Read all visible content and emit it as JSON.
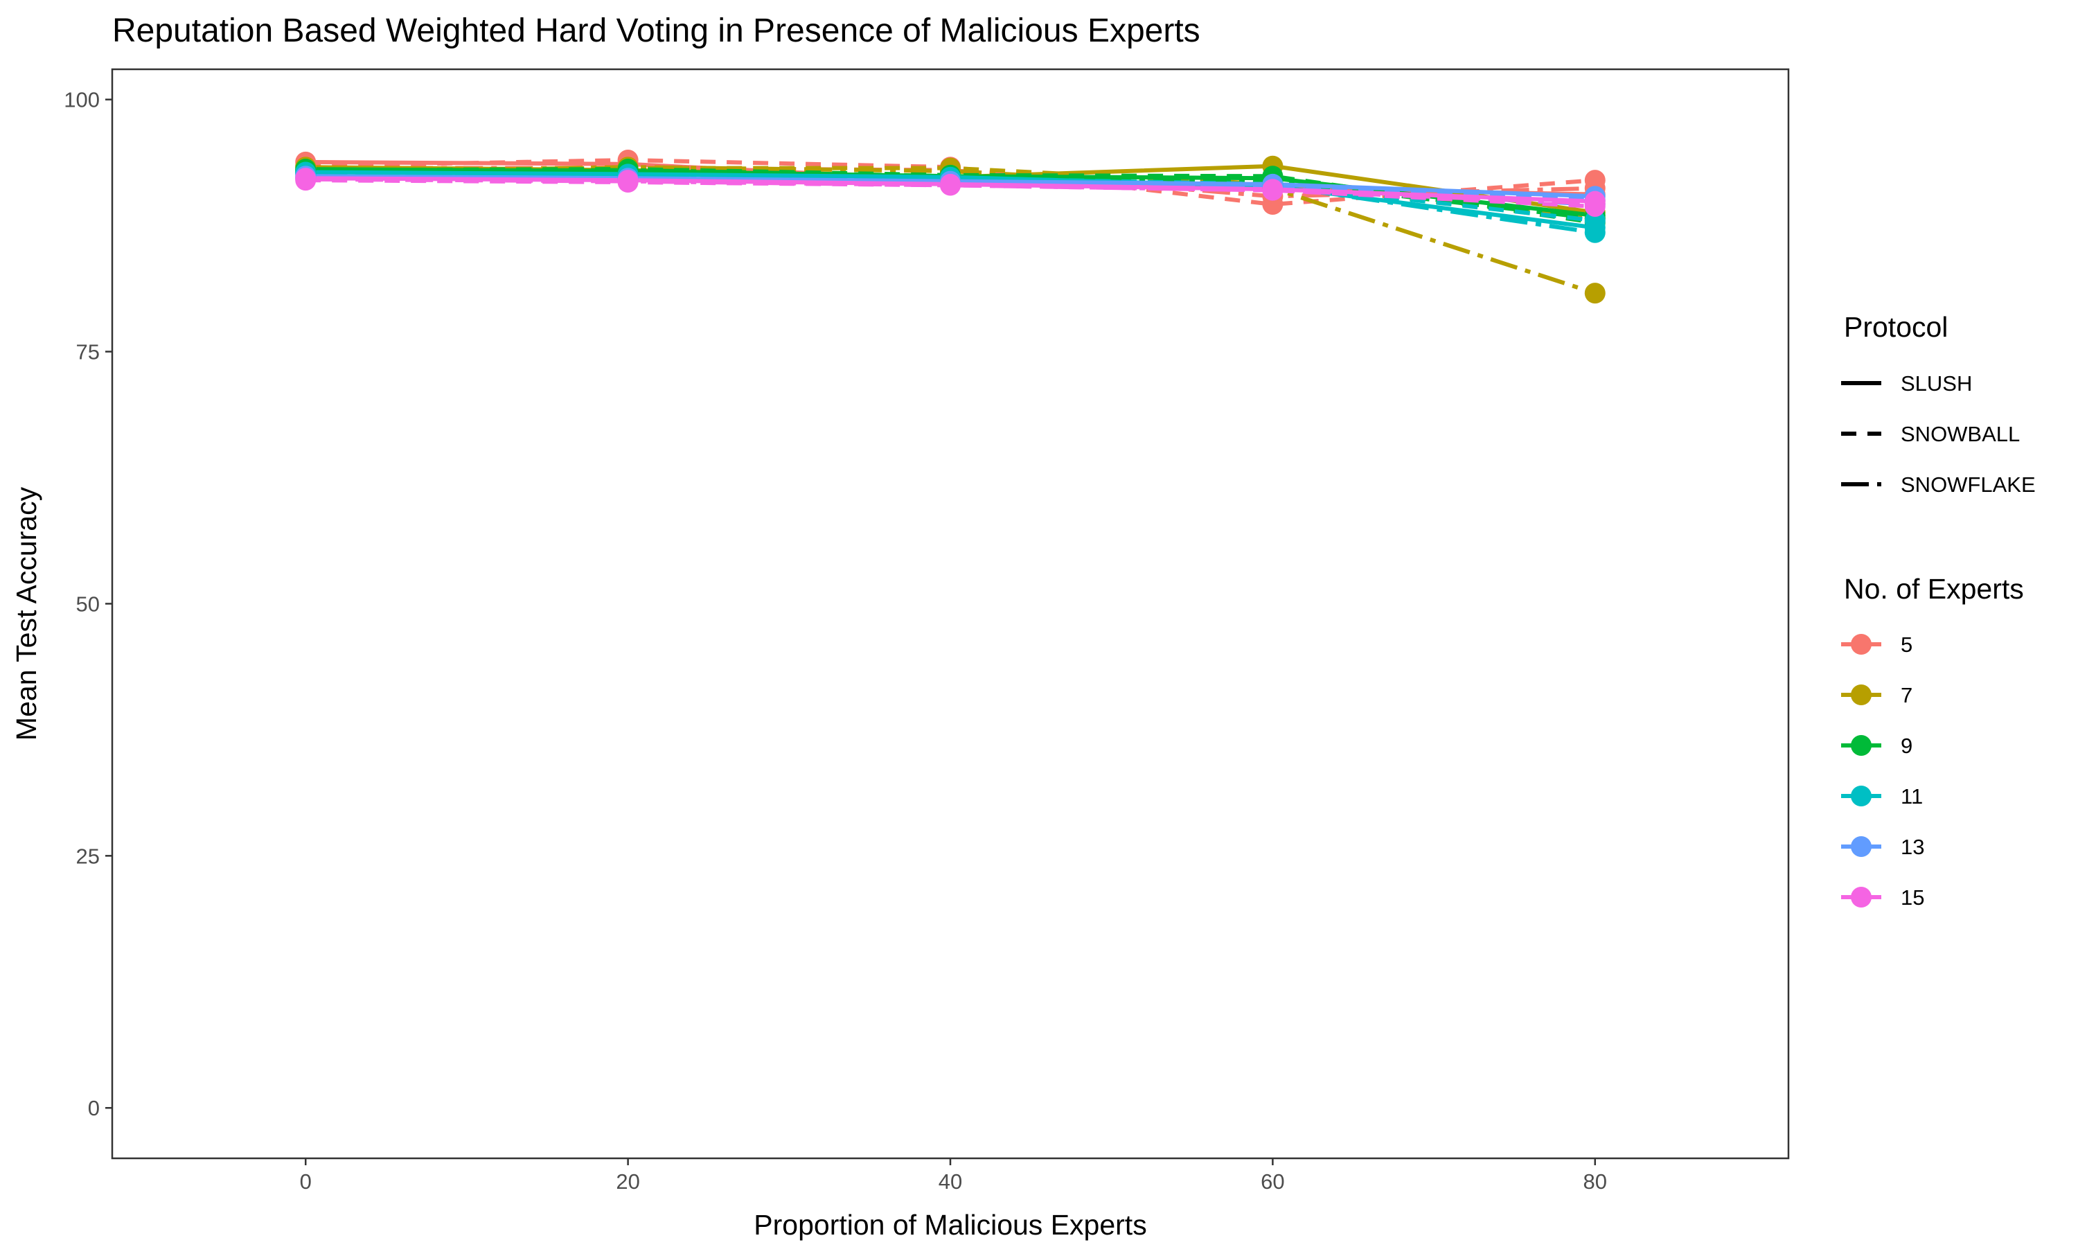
{
  "chart_data": {
    "type": "line",
    "title": "Reputation Based Weighted Hard Voting in Presence of Malicious Experts",
    "xlabel": "Proportion of Malicious Experts",
    "ylabel": "Mean Test Accuracy",
    "xlim": [
      -12,
      92
    ],
    "ylim": [
      -5,
      103
    ],
    "x_ticks": [
      "0",
      "20",
      "40",
      "60",
      "80"
    ],
    "y_ticks": [
      "0",
      "25",
      "50",
      "75",
      "100"
    ],
    "grid": false,
    "legend_placement": "right",
    "x": [
      0,
      20,
      40,
      60,
      80
    ],
    "protocol_legend": {
      "title": "Protocol",
      "entries": [
        {
          "label": "SLUSH",
          "dash": "solid"
        },
        {
          "label": "SNOWBALL",
          "dash": "dashed"
        },
        {
          "label": "SNOWFLAKE",
          "dash": "longdash"
        }
      ]
    },
    "experts_legend": {
      "title": "No. of Experts",
      "entries": [
        {
          "label": "5",
          "color": "#F8766D"
        },
        {
          "label": "7",
          "color": "#B79F00"
        },
        {
          "label": "9",
          "color": "#00BA38"
        },
        {
          "label": "11",
          "color": "#00BFC4"
        },
        {
          "label": "13",
          "color": "#619CFF"
        },
        {
          "label": "15",
          "color": "#F564E3"
        }
      ]
    },
    "series": [
      {
        "experts": "5",
        "protocol": "SLUSH",
        "color": "#F8766D",
        "values": [
          93.8,
          93.6,
          92.0,
          91.2,
          90.6
        ]
      },
      {
        "experts": "5",
        "protocol": "SNOWBALL",
        "color": "#F8766D",
        "values": [
          93.4,
          94.0,
          93.3,
          89.6,
          92.0
        ]
      },
      {
        "experts": "5",
        "protocol": "SNOWFLAKE",
        "color": "#F8766D",
        "values": [
          93.2,
          93.2,
          93.0,
          90.4,
          91.2
        ]
      },
      {
        "experts": "7",
        "protocol": "SLUSH",
        "color": "#B79F00",
        "values": [
          93.3,
          93.0,
          92.3,
          93.4,
          88.8
        ]
      },
      {
        "experts": "7",
        "protocol": "SNOWBALL",
        "color": "#B79F00",
        "values": [
          93.0,
          93.2,
          93.2,
          91.6,
          88.2
        ]
      },
      {
        "experts": "7",
        "protocol": "SNOWFLAKE",
        "color": "#B79F00",
        "values": [
          92.8,
          93.3,
          92.9,
          91.2,
          80.8
        ]
      },
      {
        "experts": "9",
        "protocol": "SLUSH",
        "color": "#00BA38",
        "values": [
          93.1,
          92.9,
          92.4,
          92.2,
          88.5
        ]
      },
      {
        "experts": "9",
        "protocol": "SNOWBALL",
        "color": "#00BA38",
        "values": [
          93.0,
          93.1,
          92.5,
          92.4,
          87.8
        ]
      },
      {
        "experts": "9",
        "protocol": "SNOWFLAKE",
        "color": "#00BA38",
        "values": [
          92.9,
          93.0,
          92.4,
          91.9,
          88.2
        ]
      },
      {
        "experts": "11",
        "protocol": "SLUSH",
        "color": "#00BFC4",
        "values": [
          92.8,
          92.6,
          92.3,
          91.4,
          87.3
        ]
      },
      {
        "experts": "11",
        "protocol": "SNOWBALL",
        "color": "#00BFC4",
        "values": [
          92.7,
          92.5,
          92.2,
          91.6,
          88.0
        ]
      },
      {
        "experts": "11",
        "protocol": "SNOWFLAKE",
        "color": "#00BFC4",
        "values": [
          92.6,
          92.4,
          92.1,
          91.5,
          86.8
        ]
      },
      {
        "experts": "13",
        "protocol": "SLUSH",
        "color": "#619CFF",
        "values": [
          92.4,
          92.2,
          91.9,
          91.6,
          90.4
        ]
      },
      {
        "experts": "13",
        "protocol": "SNOWBALL",
        "color": "#619CFF",
        "values": [
          92.3,
          92.0,
          91.8,
          91.3,
          90.0
        ]
      },
      {
        "experts": "13",
        "protocol": "SNOWFLAKE",
        "color": "#619CFF",
        "values": [
          92.2,
          92.1,
          91.7,
          91.2,
          89.6
        ]
      },
      {
        "experts": "15",
        "protocol": "SLUSH",
        "color": "#F564E3",
        "values": [
          92.2,
          92.0,
          91.6,
          91.1,
          89.9
        ]
      },
      {
        "experts": "15",
        "protocol": "SNOWBALL",
        "color": "#F564E3",
        "values": [
          92.0,
          91.8,
          91.5,
          91.0,
          89.4
        ]
      },
      {
        "experts": "15",
        "protocol": "SNOWFLAKE",
        "color": "#F564E3",
        "values": [
          92.1,
          91.9,
          91.5,
          91.0,
          89.7
        ]
      }
    ]
  }
}
